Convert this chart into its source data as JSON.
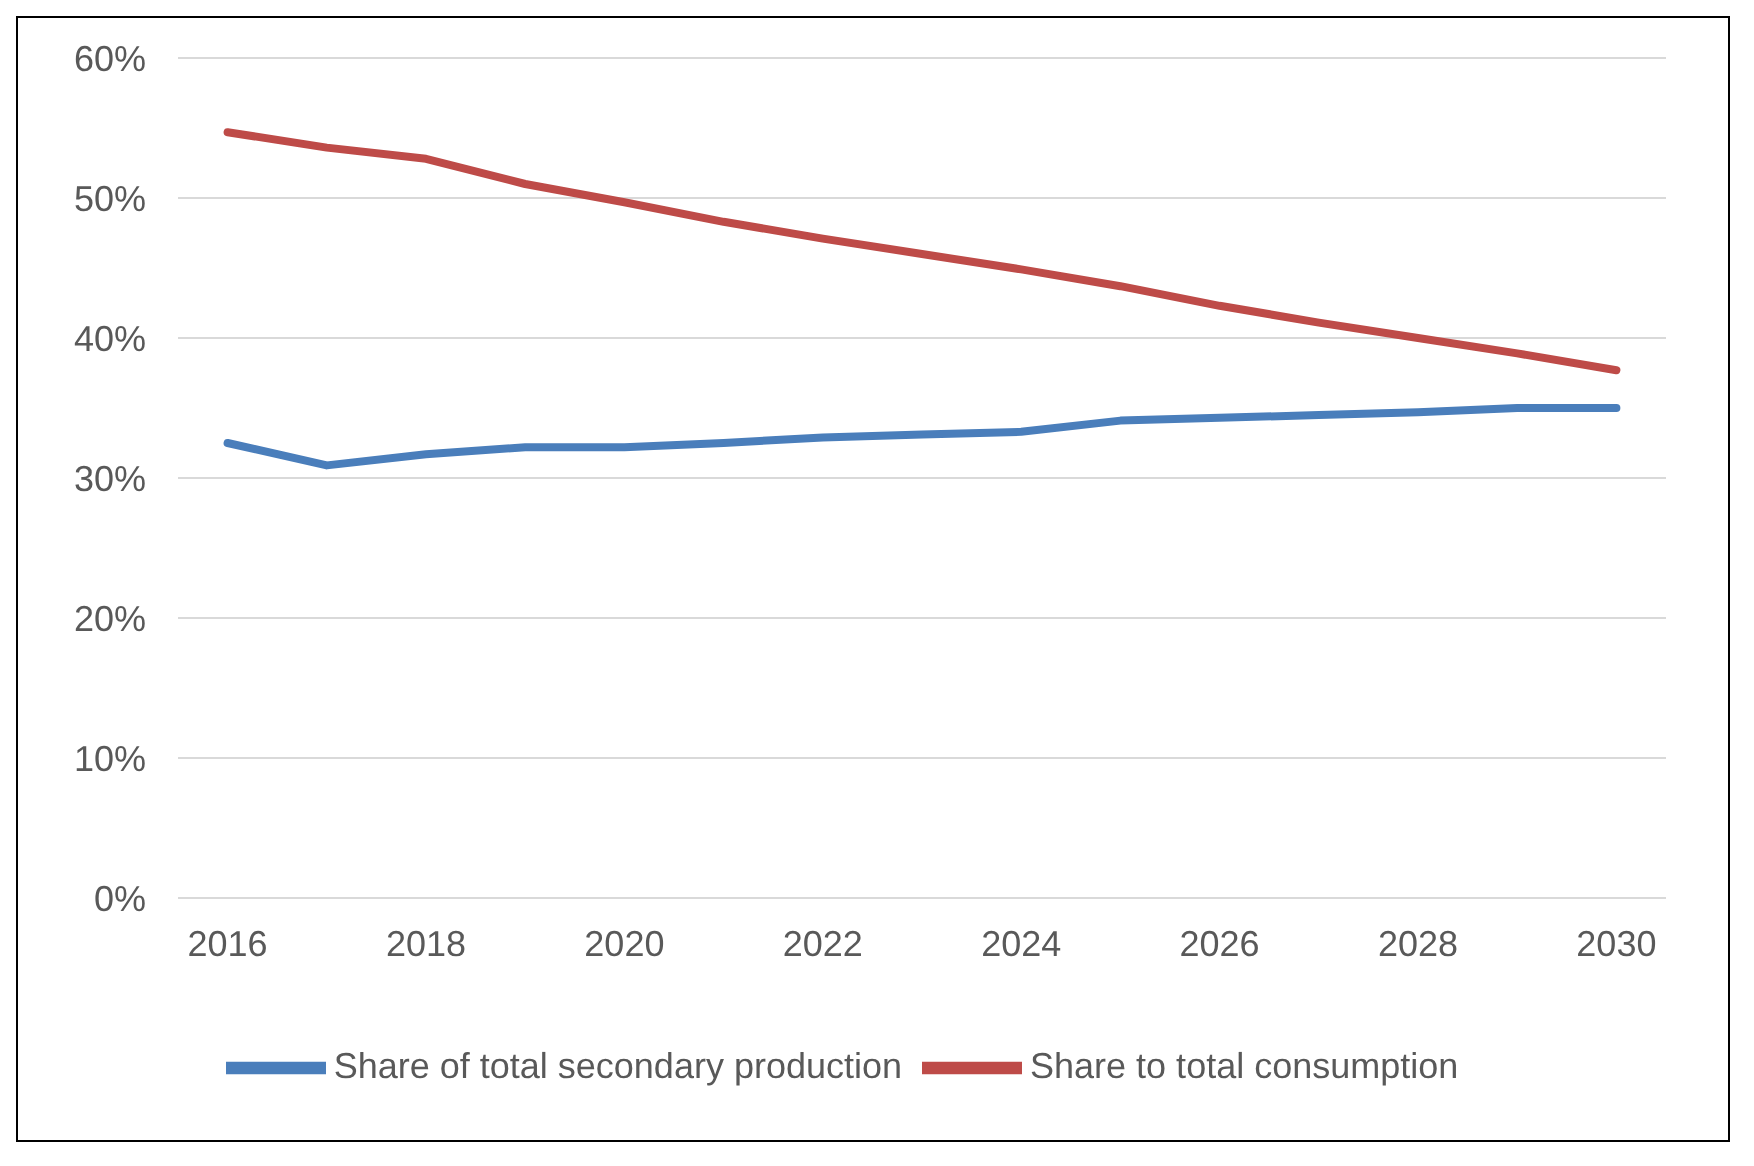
{
  "chart_data": {
    "type": "line",
    "x": [
      2016,
      2017,
      2018,
      2019,
      2020,
      2021,
      2022,
      2023,
      2024,
      2025,
      2026,
      2027,
      2028,
      2029,
      2030
    ],
    "series": [
      {
        "name": "Share of total secondary production",
        "color": "#4a7ebb",
        "values": [
          32.5,
          30.9,
          31.7,
          32.2,
          32.2,
          32.5,
          32.9,
          33.1,
          33.3,
          34.1,
          34.3,
          34.5,
          34.7,
          35.0,
          35.0
        ]
      },
      {
        "name": "Share to total consumption",
        "color": "#be4b48",
        "values": [
          54.7,
          53.6,
          52.8,
          51.0,
          49.7,
          48.3,
          47.1,
          46.0,
          44.9,
          43.7,
          42.3,
          41.1,
          40.0,
          38.9,
          37.7
        ]
      }
    ],
    "xlim": [
      2015.5,
      2030.5
    ],
    "xticks": [
      2016,
      2018,
      2020,
      2022,
      2024,
      2026,
      2028,
      2030
    ],
    "ylim": [
      0,
      60
    ],
    "yticks": [
      {
        "value": 0,
        "label": "0%"
      },
      {
        "value": 10,
        "label": "10%"
      },
      {
        "value": 20,
        "label": "20%"
      },
      {
        "value": 30,
        "label": "30%"
      },
      {
        "value": 40,
        "label": "40%"
      },
      {
        "value": 50,
        "label": "50%"
      },
      {
        "value": 60,
        "label": "60%"
      }
    ],
    "grid": "y",
    "legend": "bottom",
    "marker": "none",
    "line_style": "solid"
  }
}
